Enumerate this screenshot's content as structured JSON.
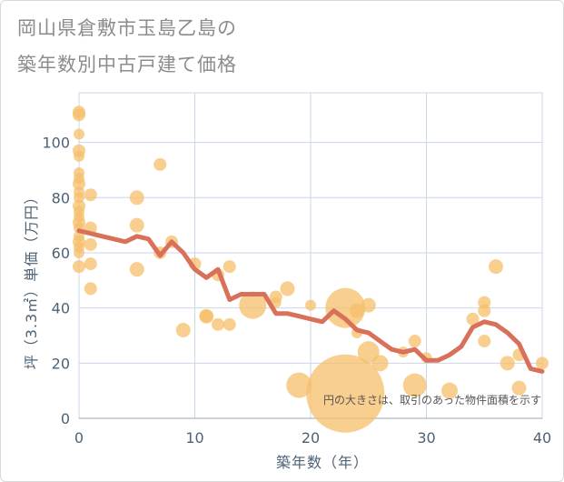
{
  "title_line1": "岡山県倉敷市玉島乙島の",
  "title_line2": "築年数別中古戸建て価格",
  "note": "円の大きさは、取引のあった物件面積を示す",
  "colors": {
    "bubble": "#f5bf69",
    "line": "#d9705a",
    "grid": "#ccd6eb",
    "axis_text": "#4d6277",
    "title": "#8c8c8c"
  },
  "chart_data": {
    "type": "scatter",
    "xlabel": "築年数（年）",
    "ylabel": "坪（3.3㎡）単価（万円）",
    "xlim": [
      0,
      40
    ],
    "ylim": [
      0,
      118
    ],
    "xticks": [
      0,
      10,
      20,
      30,
      40
    ],
    "yticks": [
      0,
      20,
      40,
      60,
      80,
      100
    ],
    "grid": true,
    "bubbles": [
      {
        "x": 0,
        "y": 111,
        "s": 7
      },
      {
        "x": 0,
        "y": 110,
        "s": 7
      },
      {
        "x": 0,
        "y": 103,
        "s": 6
      },
      {
        "x": 0,
        "y": 97,
        "s": 7
      },
      {
        "x": 0,
        "y": 95,
        "s": 6
      },
      {
        "x": 0,
        "y": 89,
        "s": 6
      },
      {
        "x": 0,
        "y": 87,
        "s": 6
      },
      {
        "x": 0,
        "y": 85,
        "s": 7
      },
      {
        "x": 0,
        "y": 82,
        "s": 6
      },
      {
        "x": 0,
        "y": 80,
        "s": 6
      },
      {
        "x": 0,
        "y": 77,
        "s": 7
      },
      {
        "x": 0,
        "y": 75,
        "s": 6
      },
      {
        "x": 0,
        "y": 73,
        "s": 6
      },
      {
        "x": 0,
        "y": 71,
        "s": 7
      },
      {
        "x": 0,
        "y": 69,
        "s": 6
      },
      {
        "x": 0,
        "y": 66,
        "s": 6
      },
      {
        "x": 0,
        "y": 64,
        "s": 7
      },
      {
        "x": 0,
        "y": 62,
        "s": 6
      },
      {
        "x": 0,
        "y": 60,
        "s": 6
      },
      {
        "x": 0,
        "y": 55,
        "s": 7
      },
      {
        "x": 1,
        "y": 81,
        "s": 7
      },
      {
        "x": 1,
        "y": 69,
        "s": 7
      },
      {
        "x": 1,
        "y": 63,
        "s": 7
      },
      {
        "x": 1,
        "y": 56,
        "s": 7
      },
      {
        "x": 1,
        "y": 47,
        "s": 7
      },
      {
        "x": 5,
        "y": 80,
        "s": 8
      },
      {
        "x": 5,
        "y": 70,
        "s": 8
      },
      {
        "x": 5,
        "y": 54,
        "s": 8
      },
      {
        "x": 7,
        "y": 92,
        "s": 7
      },
      {
        "x": 7,
        "y": 60,
        "s": 7
      },
      {
        "x": 8,
        "y": 64,
        "s": 7
      },
      {
        "x": 9,
        "y": 32,
        "s": 8
      },
      {
        "x": 10,
        "y": 56,
        "s": 7
      },
      {
        "x": 11,
        "y": 37,
        "s": 8
      },
      {
        "x": 11,
        "y": 37,
        "s": 7
      },
      {
        "x": 12,
        "y": 34,
        "s": 7
      },
      {
        "x": 12,
        "y": 52,
        "s": 7
      },
      {
        "x": 13,
        "y": 55,
        "s": 7
      },
      {
        "x": 13,
        "y": 34,
        "s": 7
      },
      {
        "x": 15,
        "y": 41,
        "s": 15
      },
      {
        "x": 17,
        "y": 44,
        "s": 7
      },
      {
        "x": 17,
        "y": 42,
        "s": 6
      },
      {
        "x": 18,
        "y": 47,
        "s": 8
      },
      {
        "x": 19,
        "y": 12,
        "s": 14
      },
      {
        "x": 20,
        "y": 41,
        "s": 6
      },
      {
        "x": 23,
        "y": 40,
        "s": 22
      },
      {
        "x": 23,
        "y": 9,
        "s": 43
      },
      {
        "x": 24,
        "y": 39,
        "s": 8
      },
      {
        "x": 24,
        "y": 31,
        "s": 6
      },
      {
        "x": 25,
        "y": 41,
        "s": 8
      },
      {
        "x": 25,
        "y": 24,
        "s": 12
      },
      {
        "x": 26,
        "y": 20,
        "s": 9
      },
      {
        "x": 28,
        "y": 24,
        "s": 6
      },
      {
        "x": 29,
        "y": 28,
        "s": 7
      },
      {
        "x": 29,
        "y": 12,
        "s": 13
      },
      {
        "x": 30,
        "y": 22,
        "s": 6
      },
      {
        "x": 32,
        "y": 10,
        "s": 9
      },
      {
        "x": 34,
        "y": 36,
        "s": 7
      },
      {
        "x": 35,
        "y": 42,
        "s": 7
      },
      {
        "x": 35,
        "y": 39,
        "s": 7
      },
      {
        "x": 35,
        "y": 28,
        "s": 7
      },
      {
        "x": 36,
        "y": 55,
        "s": 8
      },
      {
        "x": 37,
        "y": 20,
        "s": 8
      },
      {
        "x": 38,
        "y": 11,
        "s": 8
      },
      {
        "x": 38,
        "y": 23,
        "s": 7
      },
      {
        "x": 40,
        "y": 20,
        "s": 7
      }
    ],
    "trend": [
      {
        "x": 0,
        "y": 68
      },
      {
        "x": 1,
        "y": 67
      },
      {
        "x": 2,
        "y": 66
      },
      {
        "x": 3,
        "y": 65
      },
      {
        "x": 4,
        "y": 64
      },
      {
        "x": 5,
        "y": 66
      },
      {
        "x": 6,
        "y": 65
      },
      {
        "x": 7,
        "y": 59
      },
      {
        "x": 8,
        "y": 64
      },
      {
        "x": 9,
        "y": 60
      },
      {
        "x": 10,
        "y": 54
      },
      {
        "x": 11,
        "y": 51
      },
      {
        "x": 12,
        "y": 54
      },
      {
        "x": 13,
        "y": 43
      },
      {
        "x": 14,
        "y": 45
      },
      {
        "x": 15,
        "y": 45
      },
      {
        "x": 16,
        "y": 45
      },
      {
        "x": 17,
        "y": 38
      },
      {
        "x": 18,
        "y": 38
      },
      {
        "x": 19,
        "y": 37
      },
      {
        "x": 20,
        "y": 36
      },
      {
        "x": 21,
        "y": 35
      },
      {
        "x": 22,
        "y": 39
      },
      {
        "x": 23,
        "y": 36
      },
      {
        "x": 24,
        "y": 32
      },
      {
        "x": 25,
        "y": 31
      },
      {
        "x": 26,
        "y": 28
      },
      {
        "x": 27,
        "y": 25
      },
      {
        "x": 28,
        "y": 24
      },
      {
        "x": 29,
        "y": 25
      },
      {
        "x": 30,
        "y": 21
      },
      {
        "x": 31,
        "y": 21
      },
      {
        "x": 32,
        "y": 23
      },
      {
        "x": 33,
        "y": 26
      },
      {
        "x": 34,
        "y": 33
      },
      {
        "x": 35,
        "y": 35
      },
      {
        "x": 36,
        "y": 34
      },
      {
        "x": 37,
        "y": 31
      },
      {
        "x": 38,
        "y": 27
      },
      {
        "x": 39,
        "y": 18
      },
      {
        "x": 40,
        "y": 17
      }
    ]
  }
}
